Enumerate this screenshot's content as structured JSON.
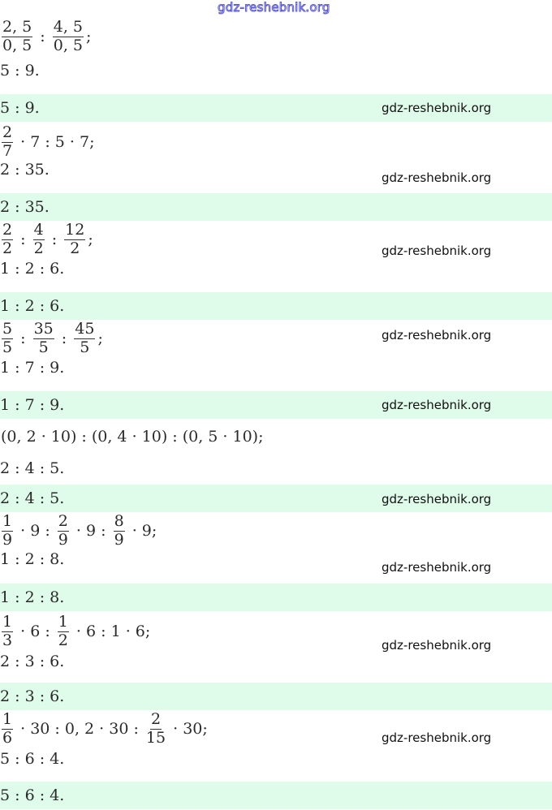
{
  "watermark": "gdz-reshebnik.org",
  "band_color": "#dffbea",
  "blocks": [
    {
      "expr": [
        {
          "n": "2, 5",
          "d": "0, 5"
        },
        {
          "t": " : "
        },
        {
          "n": "4, 5",
          "d": "0, 5"
        },
        {
          "t": ";"
        }
      ],
      "result": "5 : 9.",
      "answer": "5 : 9."
    },
    {
      "expr": [
        {
          "n": "2",
          "d": "7"
        },
        {
          "t": " · 7 : 5 · 7;"
        }
      ],
      "result": "2 : 35.",
      "answer": "2 : 35."
    },
    {
      "expr": [
        {
          "n": "2",
          "d": "2"
        },
        {
          "t": " : "
        },
        {
          "n": "4",
          "d": "2"
        },
        {
          "t": " : "
        },
        {
          "n": "12",
          "d": "2"
        },
        {
          "t": ";"
        }
      ],
      "result": "1 : 2 : 6.",
      "answer": "1 : 2 : 6."
    },
    {
      "expr": [
        {
          "n": "5",
          "d": "5"
        },
        {
          "t": " : "
        },
        {
          "n": "35",
          "d": "5"
        },
        {
          "t": " : "
        },
        {
          "n": "45",
          "d": "5"
        },
        {
          "t": ";"
        }
      ],
      "result": "1 : 7 : 9.",
      "answer": "1 : 7 : 9."
    },
    {
      "expr": [
        {
          "t": "(0, 2 · 10) : (0, 4 · 10) : (0, 5 · 10);"
        }
      ],
      "result": "2 : 4 : 5.",
      "answer": "2 : 4 : 5."
    },
    {
      "expr": [
        {
          "n": "1",
          "d": "9"
        },
        {
          "t": " · 9 : "
        },
        {
          "n": "2",
          "d": "9"
        },
        {
          "t": " · 9 : "
        },
        {
          "n": "8",
          "d": "9"
        },
        {
          "t": " · 9;"
        }
      ],
      "result": "1 : 2 : 8.",
      "answer": "1 : 2 : 8."
    },
    {
      "expr": [
        {
          "n": "1",
          "d": "3"
        },
        {
          "t": " · 6 : "
        },
        {
          "n": "1",
          "d": "2"
        },
        {
          "t": " · 6 : 1 · 6;"
        }
      ],
      "result": "2 : 3 : 6.",
      "answer": "2 : 3 : 6."
    },
    {
      "expr": [
        {
          "n": "1",
          "d": "6"
        },
        {
          "t": " · 30 : 0, 2 · 30 : "
        },
        {
          "n": "2",
          "d": "15"
        },
        {
          "t": " · 30;"
        }
      ],
      "result": "5 : 6 : 4.",
      "answer": "5 : 6 : 4."
    }
  ]
}
